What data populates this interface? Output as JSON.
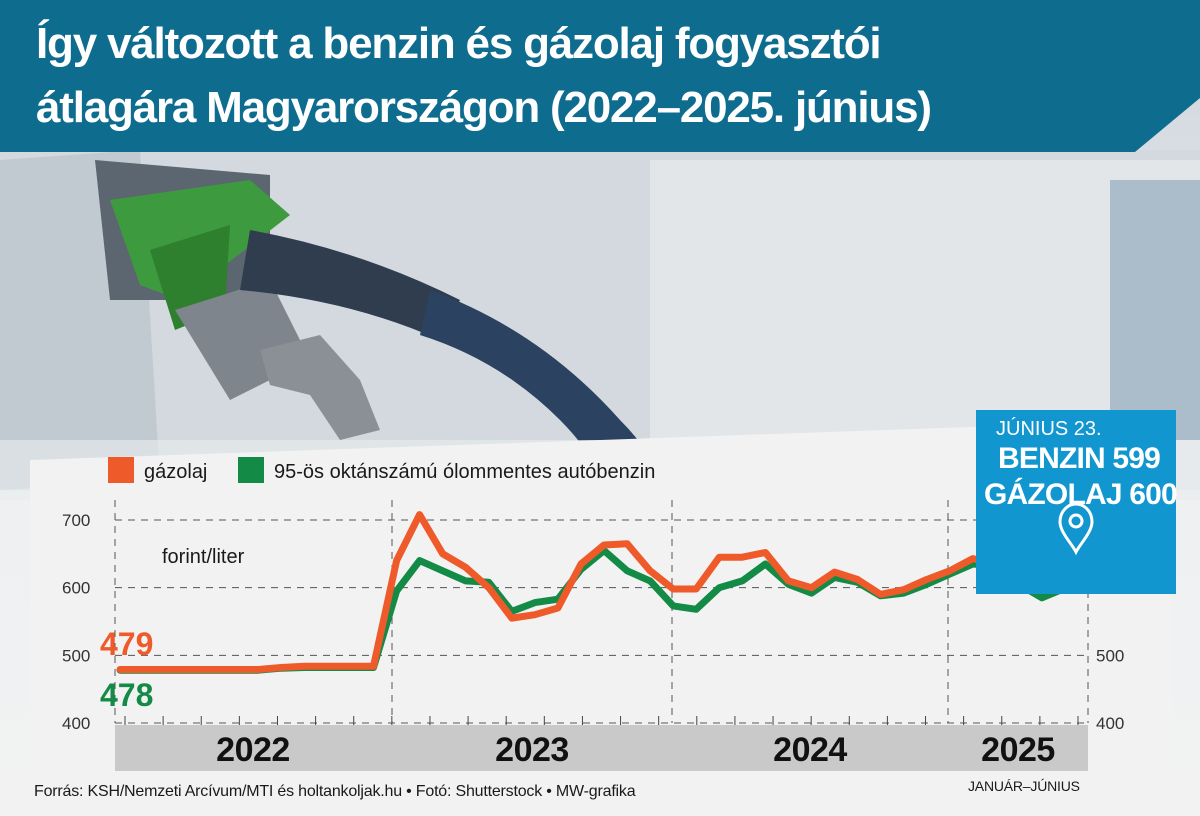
{
  "title": {
    "line1": "Így változott a benzin és gázolaj fogyasztói",
    "line2": "átlagára Magyarországon (2022–2025. június)"
  },
  "colors": {
    "banner": "#0e6c8f",
    "diesel": "#ee5a2a",
    "petrol": "#138a45",
    "callout": "#1196d0",
    "year_band": "#c9c9c9"
  },
  "chart_data": {
    "type": "line",
    "x": [
      "2022-01",
      "2022-02",
      "2022-03",
      "2022-04",
      "2022-05",
      "2022-06",
      "2022-07",
      "2022-08",
      "2022-09",
      "2022-10",
      "2022-11",
      "2022-12",
      "2023-01",
      "2023-02",
      "2023-03",
      "2023-04",
      "2023-05",
      "2023-06",
      "2023-07",
      "2023-08",
      "2023-09",
      "2023-10",
      "2023-11",
      "2023-12",
      "2024-01",
      "2024-02",
      "2024-03",
      "2024-04",
      "2024-05",
      "2024-06",
      "2024-07",
      "2024-08",
      "2024-09",
      "2024-10",
      "2024-11",
      "2024-12",
      "2025-01",
      "2025-02",
      "2025-03",
      "2025-04",
      "2025-05",
      "2025-06"
    ],
    "series": [
      {
        "name": "gázolaj",
        "color": "#ee5a2a",
        "values": [
          479,
          479,
          479,
          479,
          479,
          479,
          479,
          482,
          484,
          484,
          484,
          484,
          640,
          708,
          650,
          630,
          600,
          555,
          560,
          570,
          635,
          663,
          665,
          625,
          598,
          598,
          645,
          645,
          652,
          610,
          600,
          623,
          612,
          590,
          597,
          612,
          625,
          643,
          635,
          620,
          600,
          600
        ]
      },
      {
        "name": "95-ös oktánszámú ólommentes autóbenzin",
        "color": "#138a45",
        "values": [
          478,
          478,
          478,
          478,
          478,
          478,
          478,
          481,
          482,
          482,
          482,
          482,
          595,
          640,
          625,
          610,
          608,
          565,
          578,
          583,
          627,
          655,
          625,
          610,
          573,
          568,
          600,
          610,
          635,
          605,
          592,
          615,
          608,
          588,
          592,
          605,
          620,
          635,
          632,
          605,
          585,
          599
        ]
      }
    ],
    "y_unit": "forint/liter",
    "yticks": [
      400,
      500,
      600,
      700
    ],
    "ylim": [
      400,
      720
    ],
    "grid": true,
    "legend": "top-left",
    "x_categories": [
      "2022",
      "2023",
      "2024",
      "2025"
    ],
    "x_note": "JANUÁR–JÚNIUS",
    "start_labels": {
      "diesel": "479",
      "petrol": "478"
    },
    "callout": {
      "date": "JÚNIUS 23.",
      "line1": "BENZIN 599",
      "line2": "GÁZOLAJ 600"
    }
  },
  "footer": {
    "source": "Forrás: KSH/Nemzeti Arcívum/MTI és holtankoljak.hu • Fotó: Shutterstock • MW-grafika"
  }
}
